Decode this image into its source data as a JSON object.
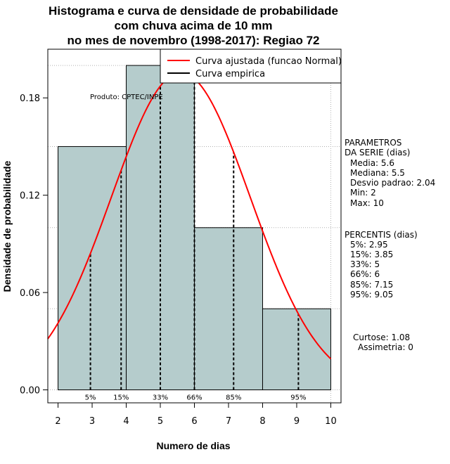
{
  "chart_data": {
    "type": "histogram",
    "title": [
      "Histograma e curva de densidade de probabilidade",
      "com chuva acima de 10 mm",
      "no mes de novembro (1998-2017): Regiao 72"
    ],
    "xlabel": "Numero de dias",
    "ylabel": "Densidade de probabilidade",
    "xlim": [
      1.7,
      10.3
    ],
    "ylim": [
      -0.008,
      0.21
    ],
    "x_ticks": [
      2,
      3,
      4,
      5,
      6,
      7,
      8,
      9,
      10
    ],
    "y_ticks": [
      0.0,
      0.06,
      0.12,
      0.18
    ],
    "y_tick_labels": [
      "0.00",
      "0.06",
      "0.12",
      "0.18"
    ],
    "bins": [
      {
        "start": 2,
        "end": 4,
        "density": 0.15
      },
      {
        "start": 4,
        "end": 6,
        "density": 0.2
      },
      {
        "start": 6,
        "end": 8,
        "density": 0.1
      },
      {
        "start": 8,
        "end": 10,
        "density": 0.05
      }
    ],
    "fitted_curve": {
      "name": "Curva ajustada (funcao Normal)",
      "mean": 5.6,
      "sd": 2.04,
      "color": "#ff0000"
    },
    "empirical_curve": {
      "name": "Curva empirica",
      "color": "#000000"
    },
    "percentiles": [
      {
        "label": "5%",
        "value": 2.95
      },
      {
        "label": "15%",
        "value": 3.85
      },
      {
        "label": "33%",
        "value": 5
      },
      {
        "label": "66%",
        "value": 6
      },
      {
        "label": "85%",
        "value": 7.15
      },
      {
        "label": "95%",
        "value": 9.05
      }
    ],
    "bar_color": "#b5cccc",
    "grid": true,
    "legend_position": "top-right"
  },
  "product_label": "Produto: CPTEC/INPE",
  "side_panel": {
    "parameters_title_1": "PARAMETROS",
    "parameters_title_2": "DA SERIE (dias)",
    "media": "Media: 5.6",
    "mediana": "Mediana: 5.5",
    "desvio": "Desvio padrao: 2.04",
    "min": "Min: 2",
    "max": "Max: 10",
    "percentis_title": "PERCENTIS (dias)",
    "p5": "5%: 2.95",
    "p15": "15%: 3.85",
    "p33": "33%: 5",
    "p66": "66%: 6",
    "p85": "85%: 7.15",
    "p95": "95%: 9.05",
    "curtose": "Curtose: 1.08",
    "assimetria": "Assimetria: 0"
  }
}
